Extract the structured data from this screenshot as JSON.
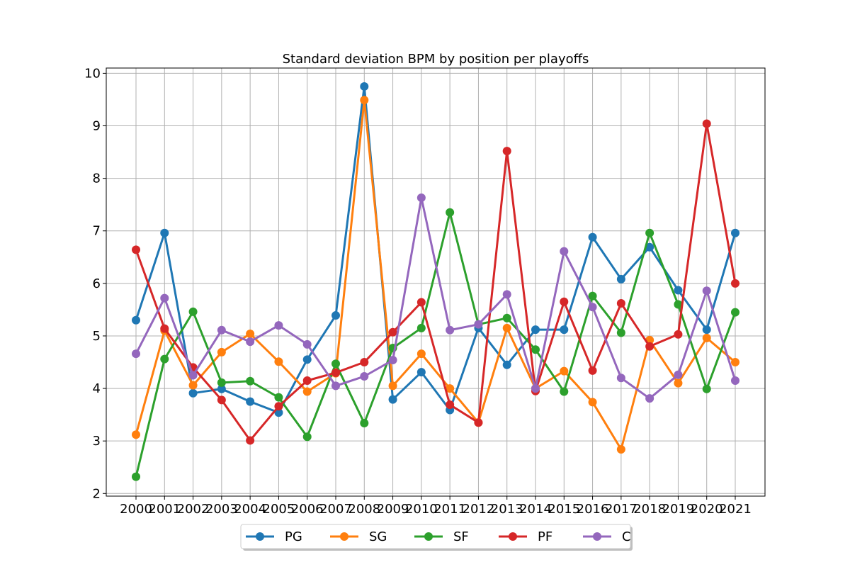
{
  "chart_data": {
    "type": "line",
    "title": "Standard deviation BPM by position per playoffs",
    "xlabel": "",
    "ylabel": "",
    "x": [
      2000,
      2001,
      2002,
      2003,
      2004,
      2005,
      2006,
      2007,
      2008,
      2009,
      2010,
      2011,
      2012,
      2013,
      2014,
      2015,
      2016,
      2017,
      2018,
      2019,
      2020,
      2021
    ],
    "ylim": [
      1.95,
      10.1
    ],
    "yticks": [
      2,
      3,
      4,
      5,
      6,
      7,
      8,
      9,
      10
    ],
    "grid": true,
    "legend_position": "bottom-center",
    "series": [
      {
        "name": "PG",
        "color": "#1f77b4",
        "values": [
          5.3,
          6.96,
          3.91,
          3.99,
          3.75,
          3.54,
          4.55,
          5.39,
          9.75,
          3.79,
          4.31,
          3.59,
          5.15,
          4.45,
          5.12,
          5.12,
          6.88,
          6.08,
          6.69,
          5.87,
          5.12,
          6.96
        ]
      },
      {
        "name": "SG",
        "color": "#ff7f0e",
        "values": [
          3.12,
          5.1,
          4.06,
          4.69,
          5.04,
          4.51,
          3.94,
          4.29,
          9.49,
          4.05,
          4.66,
          4.0,
          3.35,
          5.15,
          4.0,
          4.33,
          3.74,
          2.84,
          4.92,
          4.1,
          4.96,
          4.5
        ]
      },
      {
        "name": "SF",
        "color": "#2ca02c",
        "values": [
          2.32,
          4.56,
          5.46,
          4.11,
          4.14,
          3.83,
          3.08,
          4.47,
          3.34,
          4.77,
          5.15,
          7.35,
          5.22,
          5.34,
          4.74,
          3.94,
          5.76,
          5.06,
          6.96,
          5.6,
          3.99,
          5.45
        ]
      },
      {
        "name": "PF",
        "color": "#d62728",
        "values": [
          6.64,
          5.14,
          4.4,
          3.78,
          3.01,
          3.66,
          4.15,
          4.3,
          4.5,
          5.07,
          5.64,
          3.69,
          3.35,
          8.52,
          3.95,
          5.65,
          4.34,
          5.62,
          4.8,
          5.03,
          9.04,
          6.0
        ]
      },
      {
        "name": "C",
        "color": "#9467bd",
        "values": [
          4.66,
          5.72,
          4.25,
          5.11,
          4.89,
          5.2,
          4.84,
          4.05,
          4.23,
          4.54,
          7.63,
          5.11,
          5.22,
          5.79,
          4.0,
          6.61,
          5.55,
          4.2,
          3.81,
          4.26,
          5.86,
          4.15
        ]
      }
    ]
  }
}
